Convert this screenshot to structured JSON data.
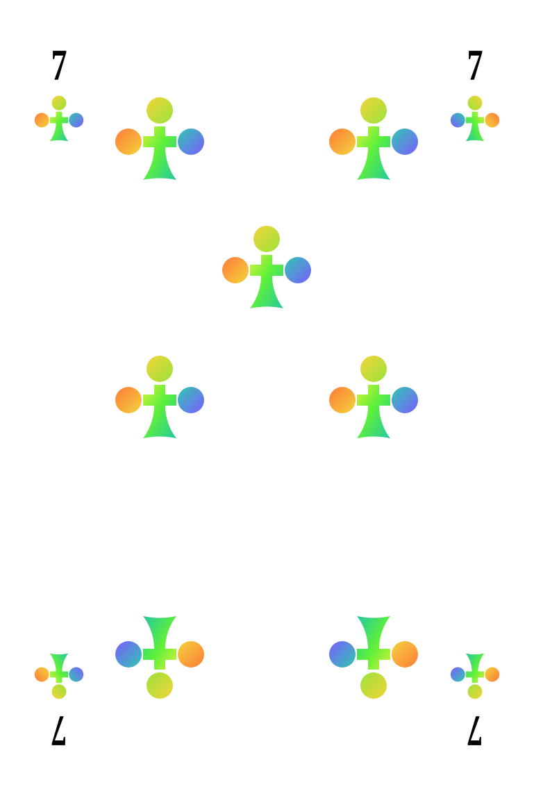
{
  "card": {
    "rank": "7",
    "suit": "club",
    "suit_icon": "club-icon",
    "pip_count": 7,
    "colors": {
      "background": "#ffffff",
      "rank_text": "#000000",
      "gradient": [
        "#ff8a3d",
        "#f2d43a",
        "#6cf03a",
        "#2fd07a",
        "#2fb0c8",
        "#7a5cff"
      ]
    }
  }
}
